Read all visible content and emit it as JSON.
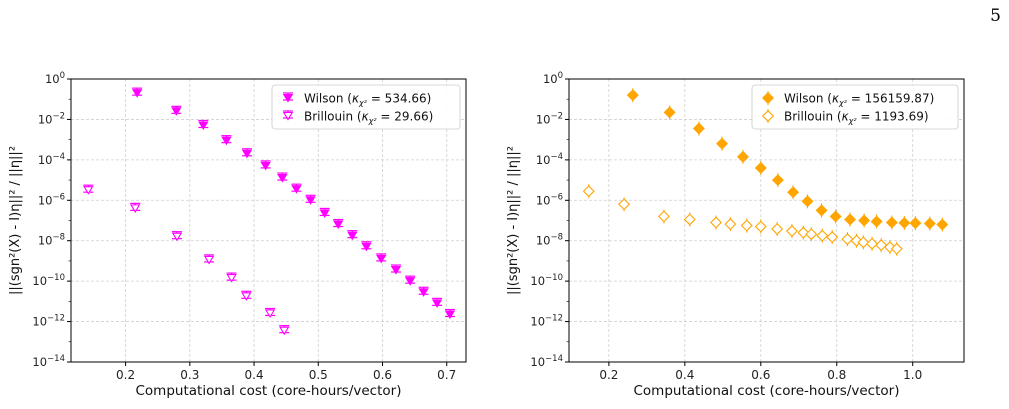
{
  "page_number": "5",
  "chart_data": [
    {
      "type": "scatter",
      "title": "",
      "xlabel": "Computational cost (core-hours/vector)",
      "ylabel": "||(sgn²(X) - I)η||² / ||η||²",
      "xlim": [
        0.115,
        0.73
      ],
      "xscale": "linear",
      "yscale": "log",
      "ylim": [
        1e-14,
        1
      ],
      "xticks": [
        "0.2",
        "0.3",
        "0.4",
        "0.5",
        "0.6",
        "0.7"
      ],
      "xtick_values": [
        0.2,
        0.3,
        0.4,
        0.5,
        0.6,
        0.7
      ],
      "ytick_exponents": [
        0,
        -2,
        -4,
        -6,
        -8,
        -10,
        -12,
        -14
      ],
      "grid": true,
      "legend_position": "top-right",
      "color": "#ff00ff",
      "series": [
        {
          "name": "Wilson (κχ² = 534.66)",
          "legend_main": "Wilson",
          "kappa": "534.66",
          "marker": "triangle-down-filled",
          "x": [
            0.218,
            0.279,
            0.321,
            0.357,
            0.389,
            0.418,
            0.444,
            0.466,
            0.488,
            0.51,
            0.531,
            0.553,
            0.575,
            0.598,
            0.621,
            0.643,
            0.664,
            0.685,
            0.705
          ],
          "y_exp": [
            -0.7,
            -1.6,
            -2.3,
            -3.05,
            -3.7,
            -4.3,
            -4.9,
            -5.45,
            -6.0,
            -6.65,
            -7.2,
            -7.75,
            -8.3,
            -8.9,
            -9.45,
            -10.0,
            -10.55,
            -11.1,
            -11.65
          ]
        },
        {
          "name": "Brillouin (κχ² = 29.66)",
          "legend_main": "Brillouin",
          "kappa": "29.66",
          "marker": "triangle-down-open",
          "x": [
            0.142,
            0.215,
            0.28,
            0.33,
            0.365,
            0.388,
            0.425,
            0.447
          ],
          "y_exp": [
            -5.5,
            -6.4,
            -7.8,
            -8.95,
            -9.85,
            -10.75,
            -11.6,
            -12.45
          ]
        }
      ]
    },
    {
      "type": "scatter",
      "title": "",
      "xlabel": "Computational cost (core-hours/vector)",
      "ylabel": "||(sgn²(X) - I)η||² / ||η||²",
      "xlim": [
        0.095,
        1.135
      ],
      "xscale": "linear",
      "yscale": "log",
      "ylim": [
        1e-14,
        1
      ],
      "xticks": [
        "0.2",
        "0.4",
        "0.6",
        "0.8",
        "1.0"
      ],
      "xtick_values": [
        0.2,
        0.4,
        0.6,
        0.8,
        1.0
      ],
      "ytick_exponents": [
        0,
        -2,
        -4,
        -6,
        -8,
        -10,
        -12,
        -14
      ],
      "grid": true,
      "legend_position": "top-right",
      "color": "#ffa500",
      "series": [
        {
          "name": "Wilson (κχ² = 156159.87)",
          "legend_main": "Wilson",
          "kappa": "156159.87",
          "marker": "diamond-filled",
          "x": [
            0.263,
            0.36,
            0.437,
            0.498,
            0.553,
            0.6,
            0.645,
            0.685,
            0.723,
            0.76,
            0.797,
            0.835,
            0.872,
            0.905,
            0.945,
            0.978,
            1.007,
            1.045,
            1.078
          ],
          "y_exp": [
            -0.8,
            -1.65,
            -2.45,
            -3.2,
            -3.85,
            -4.4,
            -5.0,
            -5.6,
            -6.05,
            -6.5,
            -6.8,
            -6.95,
            -7.0,
            -7.05,
            -7.1,
            -7.12,
            -7.13,
            -7.15,
            -7.2
          ]
        },
        {
          "name": "Brillouin (κχ² = 1193.69)",
          "legend_main": "Brillouin",
          "kappa": "1193.69",
          "marker": "diamond-open",
          "x": [
            0.147,
            0.24,
            0.345,
            0.413,
            0.482,
            0.52,
            0.563,
            0.6,
            0.643,
            0.682,
            0.712,
            0.733,
            0.762,
            0.788,
            0.828,
            0.852,
            0.87,
            0.893,
            0.917,
            0.94,
            0.958
          ],
          "y_exp": [
            -5.55,
            -6.2,
            -6.8,
            -6.95,
            -7.1,
            -7.18,
            -7.25,
            -7.3,
            -7.42,
            -7.52,
            -7.6,
            -7.68,
            -7.75,
            -7.82,
            -7.92,
            -8.0,
            -8.08,
            -8.15,
            -8.22,
            -8.32,
            -8.4
          ]
        }
      ]
    }
  ]
}
